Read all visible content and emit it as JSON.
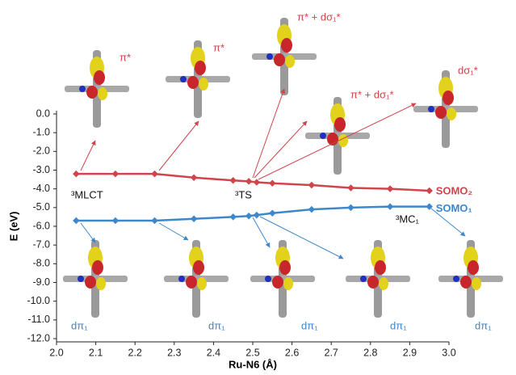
{
  "chart_data": {
    "type": "line",
    "xlabel": "Ru-N6 (Å)",
    "ylabel": "E (eV)",
    "xlim": [
      2.0,
      3.0
    ],
    "ylim": [
      -12.0,
      0.0
    ],
    "xticks": [
      {
        "value": 2.0,
        "label": "2.0"
      },
      2.1,
      2.2,
      2.3,
      2.4,
      2.5,
      2.6,
      2.7,
      2.8,
      2.9,
      {
        "value": 3.0,
        "label": "3.0"
      }
    ],
    "yticks": [
      {
        "value": 0.0,
        "label": "0.0"
      },
      {
        "value": -1.0,
        "label": "-1.0"
      },
      {
        "value": -2.0,
        "label": "-2.0"
      },
      {
        "value": -3.0,
        "label": "-3.0"
      },
      {
        "value": -4.0,
        "label": "-4.0"
      },
      {
        "value": -5.0,
        "label": "-5.0"
      },
      {
        "value": -6.0,
        "label": "-6.0"
      },
      {
        "value": -7.0,
        "label": "-7.0"
      },
      {
        "value": -8.0,
        "label": "-8.0"
      },
      {
        "value": -9.0,
        "label": "-9.0"
      },
      {
        "value": -10.0,
        "label": "-10.0"
      },
      {
        "value": -11.0,
        "label": "-11.0"
      },
      {
        "value": -12.0,
        "label": "-12.0"
      }
    ],
    "x": [
      2.05,
      2.15,
      2.25,
      2.35,
      2.45,
      2.49,
      2.51,
      2.55,
      2.65,
      2.75,
      2.85,
      2.95
    ],
    "series": [
      {
        "name": "SOMO₂",
        "color": "#d0454c",
        "values": [
          -3.2,
          -3.2,
          -3.2,
          -3.4,
          -3.55,
          -3.6,
          -3.65,
          -3.7,
          -3.8,
          -3.95,
          -4.0,
          -4.1
        ]
      },
      {
        "name": "SOMO₁",
        "color": "#3d87cc",
        "values": [
          -5.7,
          -5.7,
          -5.7,
          -5.6,
          -5.5,
          -5.45,
          -5.4,
          -5.3,
          -5.1,
          -5.0,
          -4.95,
          -4.95
        ]
      }
    ],
    "state_labels": [
      "³MLCT",
      "³TS",
      "³MC₁"
    ],
    "upper_orbital_labels": [
      "π*",
      "π*",
      "π* + dσ₁*",
      "π* + dσ₁*",
      "dσ₁*"
    ],
    "lower_orbital_labels": [
      "dπ₁",
      "dπ₁",
      "dπ₁",
      "dπ₁",
      "dπ₁"
    ]
  }
}
